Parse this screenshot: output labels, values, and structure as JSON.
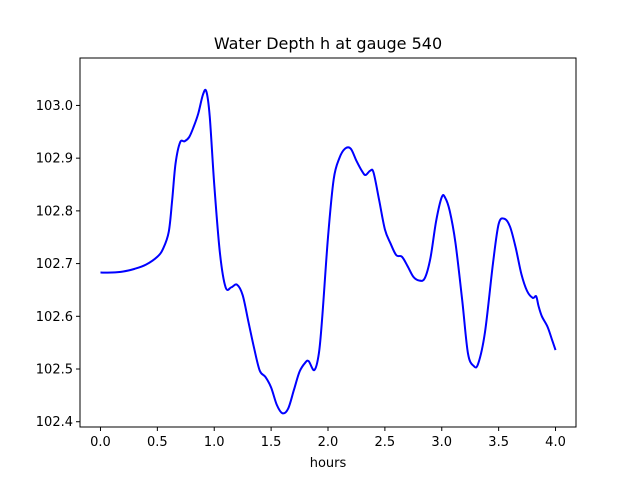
{
  "chart_data": {
    "type": "line",
    "title": "Water Depth h at gauge 540",
    "xlabel": "hours",
    "ylabel": "",
    "xlim": [
      -0.18,
      4.18
    ],
    "ylim": [
      102.39,
      103.09
    ],
    "grid": false,
    "legend": "none",
    "x_ticks": [
      {
        "value": 0.0,
        "label": "0.0"
      },
      {
        "value": 0.5,
        "label": "0.5"
      },
      {
        "value": 1.0,
        "label": "1.0"
      },
      {
        "value": 1.5,
        "label": "1.5"
      },
      {
        "value": 2.0,
        "label": "2.0"
      },
      {
        "value": 2.5,
        "label": "2.5"
      },
      {
        "value": 3.0,
        "label": "3.0"
      },
      {
        "value": 3.5,
        "label": "3.5"
      },
      {
        "value": 4.0,
        "label": "4.0"
      }
    ],
    "y_ticks": [
      {
        "value": 102.4,
        "label": "102.4"
      },
      {
        "value": 102.5,
        "label": "102.5"
      },
      {
        "value": 102.6,
        "label": "102.6"
      },
      {
        "value": 102.7,
        "label": "102.7"
      },
      {
        "value": 102.8,
        "label": "102.8"
      },
      {
        "value": 102.9,
        "label": "102.9"
      },
      {
        "value": 103.0,
        "label": "103.0"
      }
    ],
    "series": [
      {
        "color": "#0000ff",
        "points": [
          [
            0.0,
            102.683
          ],
          [
            0.1,
            102.683
          ],
          [
            0.2,
            102.685
          ],
          [
            0.3,
            102.69
          ],
          [
            0.4,
            102.698
          ],
          [
            0.5,
            102.713
          ],
          [
            0.55,
            102.728
          ],
          [
            0.6,
            102.76
          ],
          [
            0.63,
            102.82
          ],
          [
            0.66,
            102.89
          ],
          [
            0.7,
            102.93
          ],
          [
            0.74,
            102.932
          ],
          [
            0.78,
            102.94
          ],
          [
            0.82,
            102.96
          ],
          [
            0.86,
            102.985
          ],
          [
            0.9,
            103.02
          ],
          [
            0.93,
            103.027
          ],
          [
            0.96,
            102.98
          ],
          [
            1.0,
            102.85
          ],
          [
            1.05,
            102.72
          ],
          [
            1.1,
            102.655
          ],
          [
            1.15,
            102.655
          ],
          [
            1.2,
            102.66
          ],
          [
            1.25,
            102.64
          ],
          [
            1.3,
            102.59
          ],
          [
            1.35,
            102.54
          ],
          [
            1.4,
            102.497
          ],
          [
            1.45,
            102.485
          ],
          [
            1.5,
            102.465
          ],
          [
            1.55,
            102.432
          ],
          [
            1.6,
            102.416
          ],
          [
            1.65,
            102.425
          ],
          [
            1.7,
            102.46
          ],
          [
            1.75,
            102.495
          ],
          [
            1.8,
            102.512
          ],
          [
            1.83,
            102.515
          ],
          [
            1.88,
            102.498
          ],
          [
            1.92,
            102.53
          ],
          [
            1.95,
            102.6
          ],
          [
            2.0,
            102.75
          ],
          [
            2.05,
            102.86
          ],
          [
            2.1,
            102.9
          ],
          [
            2.15,
            102.918
          ],
          [
            2.2,
            102.918
          ],
          [
            2.25,
            102.895
          ],
          [
            2.3,
            102.875
          ],
          [
            2.33,
            102.868
          ],
          [
            2.37,
            102.876
          ],
          [
            2.4,
            102.873
          ],
          [
            2.45,
            102.82
          ],
          [
            2.5,
            102.765
          ],
          [
            2.55,
            102.738
          ],
          [
            2.6,
            102.716
          ],
          [
            2.65,
            102.713
          ],
          [
            2.7,
            102.695
          ],
          [
            2.75,
            102.675
          ],
          [
            2.8,
            102.668
          ],
          [
            2.85,
            102.672
          ],
          [
            2.9,
            102.71
          ],
          [
            2.95,
            102.78
          ],
          [
            3.0,
            102.826
          ],
          [
            3.03,
            102.825
          ],
          [
            3.07,
            102.8
          ],
          [
            3.12,
            102.74
          ],
          [
            3.18,
            102.63
          ],
          [
            3.23,
            102.53
          ],
          [
            3.28,
            102.506
          ],
          [
            3.32,
            102.51
          ],
          [
            3.38,
            102.57
          ],
          [
            3.45,
            102.7
          ],
          [
            3.5,
            102.775
          ],
          [
            3.55,
            102.785
          ],
          [
            3.6,
            102.77
          ],
          [
            3.65,
            102.73
          ],
          [
            3.7,
            102.68
          ],
          [
            3.75,
            102.648
          ],
          [
            3.8,
            102.635
          ],
          [
            3.83,
            102.638
          ],
          [
            3.85,
            102.62
          ],
          [
            3.88,
            102.6
          ],
          [
            3.93,
            102.58
          ],
          [
            3.97,
            102.555
          ],
          [
            4.0,
            102.536
          ]
        ]
      }
    ]
  }
}
